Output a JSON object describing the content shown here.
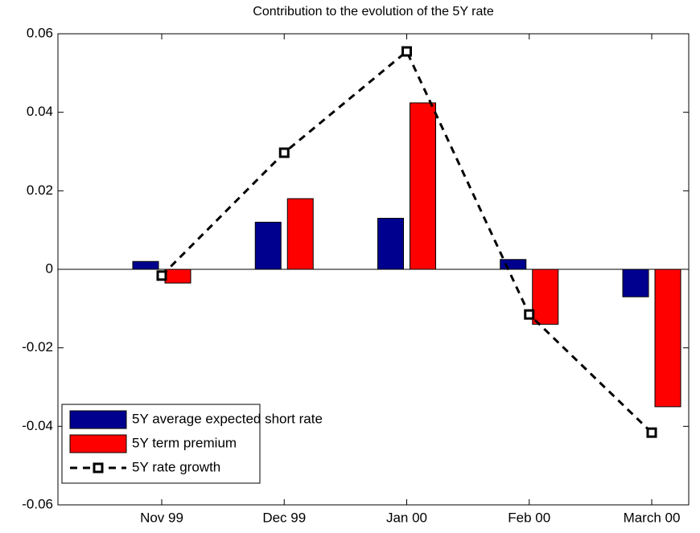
{
  "chart_data": {
    "type": "bar",
    "title": "Contribution to the evolution of the 5Y rate",
    "categories": [
      "Nov 99",
      "Dec 99",
      "Jan 00",
      "Feb 00",
      "March 00"
    ],
    "series": [
      {
        "name": "5Y average expected short rate",
        "color": "#00008f",
        "values": [
          0.002,
          0.012,
          0.013,
          0.0025,
          -0.007
        ]
      },
      {
        "name": "5Y term premium",
        "color": "#ff0000",
        "values": [
          -0.0035,
          0.018,
          0.0424,
          -0.014,
          -0.035
        ]
      },
      {
        "name": "5Y rate growth",
        "type": "line",
        "color": "#000000",
        "values": [
          -0.0016,
          0.0297,
          0.0555,
          -0.0115,
          -0.0416
        ]
      }
    ],
    "ylim": [
      -0.06,
      0.06
    ],
    "yticks": [
      -0.06,
      -0.04,
      -0.02,
      0,
      0.02,
      0.04,
      0.06
    ],
    "legend": "lower left"
  }
}
